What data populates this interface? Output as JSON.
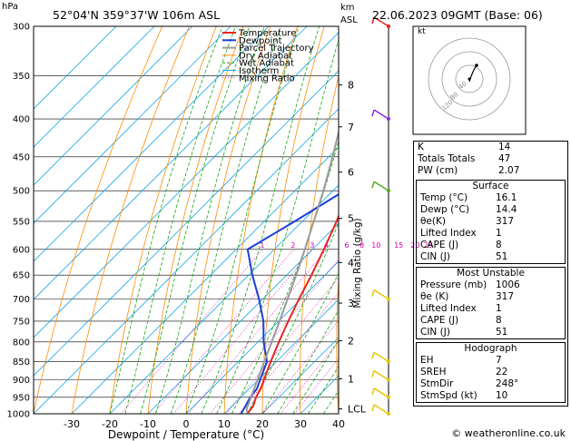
{
  "header": {
    "hpa_unit": "hPa",
    "location": "52°04'N  359°37'W  106m  ASL",
    "km_unit": "km",
    "asl": "ASL",
    "datetime": "22.06.2023  09GMT  (Base: 06)"
  },
  "legend": [
    "Temperature",
    "Dewpoint",
    "Parcel Trajectory",
    "Dry Adiabat",
    "Wet Adiabat",
    "Isotherm",
    "Mixing Ratio"
  ],
  "colors": {
    "temperature": "#e8231f",
    "dewpoint": "#1a3ed8",
    "parcel": "#9a9a9a",
    "dry_adiabat": "#ff8c00",
    "wet_adiabat": "#1aa41a",
    "isotherm": "#19a8e6",
    "mixing_ratio": "#d400a8"
  },
  "hodograph_label": "kt",
  "hodograph_rings": [
    "40",
    "80",
    "120"
  ],
  "axis_right_label": "Mixing Ratio (g/kg)",
  "footer": "© weatheronline.co.uk",
  "chart_data": {
    "type": "line",
    "xlabel": "Dewpoint / Temperature (°C)",
    "ylabel": "",
    "xlim": [
      -40,
      40
    ],
    "ylim": [
      1000,
      300
    ],
    "pressure_ticks": [
      300,
      350,
      400,
      450,
      500,
      550,
      600,
      650,
      700,
      750,
      800,
      850,
      900,
      950,
      1000
    ],
    "temperature_ticks": [
      -30,
      -20,
      -10,
      0,
      10,
      20,
      30,
      40
    ],
    "km_ticks": [
      {
        "label": "8",
        "p": 360
      },
      {
        "label": "7",
        "p": 410
      },
      {
        "label": "6",
        "p": 472
      },
      {
        "label": "5",
        "p": 545
      },
      {
        "label": "4",
        "p": 625
      },
      {
        "label": "3",
        "p": 709
      },
      {
        "label": "2",
        "p": 797
      },
      {
        "label": "1",
        "p": 897
      },
      {
        "label": "LCL",
        "p": 985
      }
    ],
    "mixing_ratio_labels": [
      "1",
      "2",
      "3",
      "4",
      "6",
      "8",
      "10",
      "15",
      "20",
      "25"
    ],
    "series": [
      {
        "name": "Temperature",
        "points": [
          {
            "p": 1000,
            "t": 16.1
          },
          {
            "p": 975,
            "t": 15.5
          },
          {
            "p": 950,
            "t": 14.0
          },
          {
            "p": 925,
            "t": 13.0
          },
          {
            "p": 900,
            "t": 11.5
          },
          {
            "p": 850,
            "t": 8.5
          },
          {
            "p": 800,
            "t": 5.5
          },
          {
            "p": 750,
            "t": 2.5
          },
          {
            "p": 700,
            "t": -0.5
          },
          {
            "p": 650,
            "t": -3.5
          },
          {
            "p": 600,
            "t": -7.0
          },
          {
            "p": 550,
            "t": -11.0
          },
          {
            "p": 500,
            "t": -16.0
          },
          {
            "p": 450,
            "t": -21.5
          },
          {
            "p": 400,
            "t": -28.0
          },
          {
            "p": 350,
            "t": -35.0
          },
          {
            "p": 320,
            "t": -40.0
          },
          {
            "p": 300,
            "t": -42.0
          }
        ]
      },
      {
        "name": "Dewpoint",
        "points": [
          {
            "p": 1000,
            "t": 14.4
          },
          {
            "p": 975,
            "t": 13.5
          },
          {
            "p": 950,
            "t": 12.5
          },
          {
            "p": 925,
            "t": 12.0
          },
          {
            "p": 900,
            "t": 10.5
          },
          {
            "p": 850,
            "t": 7.5
          },
          {
            "p": 800,
            "t": 1.5
          },
          {
            "p": 750,
            "t": -4.0
          },
          {
            "p": 700,
            "t": -11.0
          },
          {
            "p": 650,
            "t": -19.0
          },
          {
            "p": 600,
            "t": -27.0
          },
          {
            "p": 550,
            "t": -22.0
          },
          {
            "p": 500,
            "t": -17.0
          },
          {
            "p": 450,
            "t": -23.5
          },
          {
            "p": 400,
            "t": -31.0
          },
          {
            "p": 350,
            "t": -38.0
          },
          {
            "p": 300,
            "t": -45.0
          }
        ]
      },
      {
        "name": "Parcel Trajectory",
        "points": [
          {
            "p": 1000,
            "t": 16.1
          },
          {
            "p": 985,
            "t": 14.6
          },
          {
            "p": 950,
            "t": 12.7
          },
          {
            "p": 900,
            "t": 9.8
          },
          {
            "p": 850,
            "t": 6.8
          },
          {
            "p": 800,
            "t": 3.6
          },
          {
            "p": 750,
            "t": 0.2
          },
          {
            "p": 700,
            "t": -3.5
          },
          {
            "p": 650,
            "t": -7.5
          },
          {
            "p": 600,
            "t": -12.0
          },
          {
            "p": 550,
            "t": -17.0
          },
          {
            "p": 500,
            "t": -22.5
          },
          {
            "p": 450,
            "t": -29.0
          },
          {
            "p": 400,
            "t": -36.5
          },
          {
            "p": 350,
            "t": -45.0
          },
          {
            "p": 300,
            "t": -54.0
          }
        ]
      }
    ]
  },
  "indices": {
    "k_label": "K",
    "k": "14",
    "tt_label": "Totals Totals",
    "tt": "47",
    "pw_label": "PW (cm)",
    "pw": "2.07"
  },
  "surface": {
    "title": "Surface",
    "rows": [
      {
        "label": "Temp (°C)",
        "value": "16.1"
      },
      {
        "label": "Dewp (°C)",
        "value": "14.4"
      },
      {
        "label": "θe(K)",
        "value": "317"
      },
      {
        "label": "Lifted Index",
        "value": "1"
      },
      {
        "label": "CAPE (J)",
        "value": "8"
      },
      {
        "label": "CIN (J)",
        "value": "51"
      }
    ]
  },
  "most_unstable": {
    "title": "Most Unstable",
    "rows": [
      {
        "label": "Pressure (mb)",
        "value": "1006"
      },
      {
        "label": "θe (K)",
        "value": "317"
      },
      {
        "label": "Lifted Index",
        "value": "1"
      },
      {
        "label": "CAPE (J)",
        "value": "8"
      },
      {
        "label": "CIN (J)",
        "value": "51"
      }
    ]
  },
  "hodograph": {
    "title": "Hodograph",
    "rows": [
      {
        "label": "EH",
        "value": "7"
      },
      {
        "label": "SREH",
        "value": "22"
      },
      {
        "label": "StmDir",
        "value": "248°"
      },
      {
        "label": "StmSpd (kt)",
        "value": "10"
      }
    ]
  }
}
